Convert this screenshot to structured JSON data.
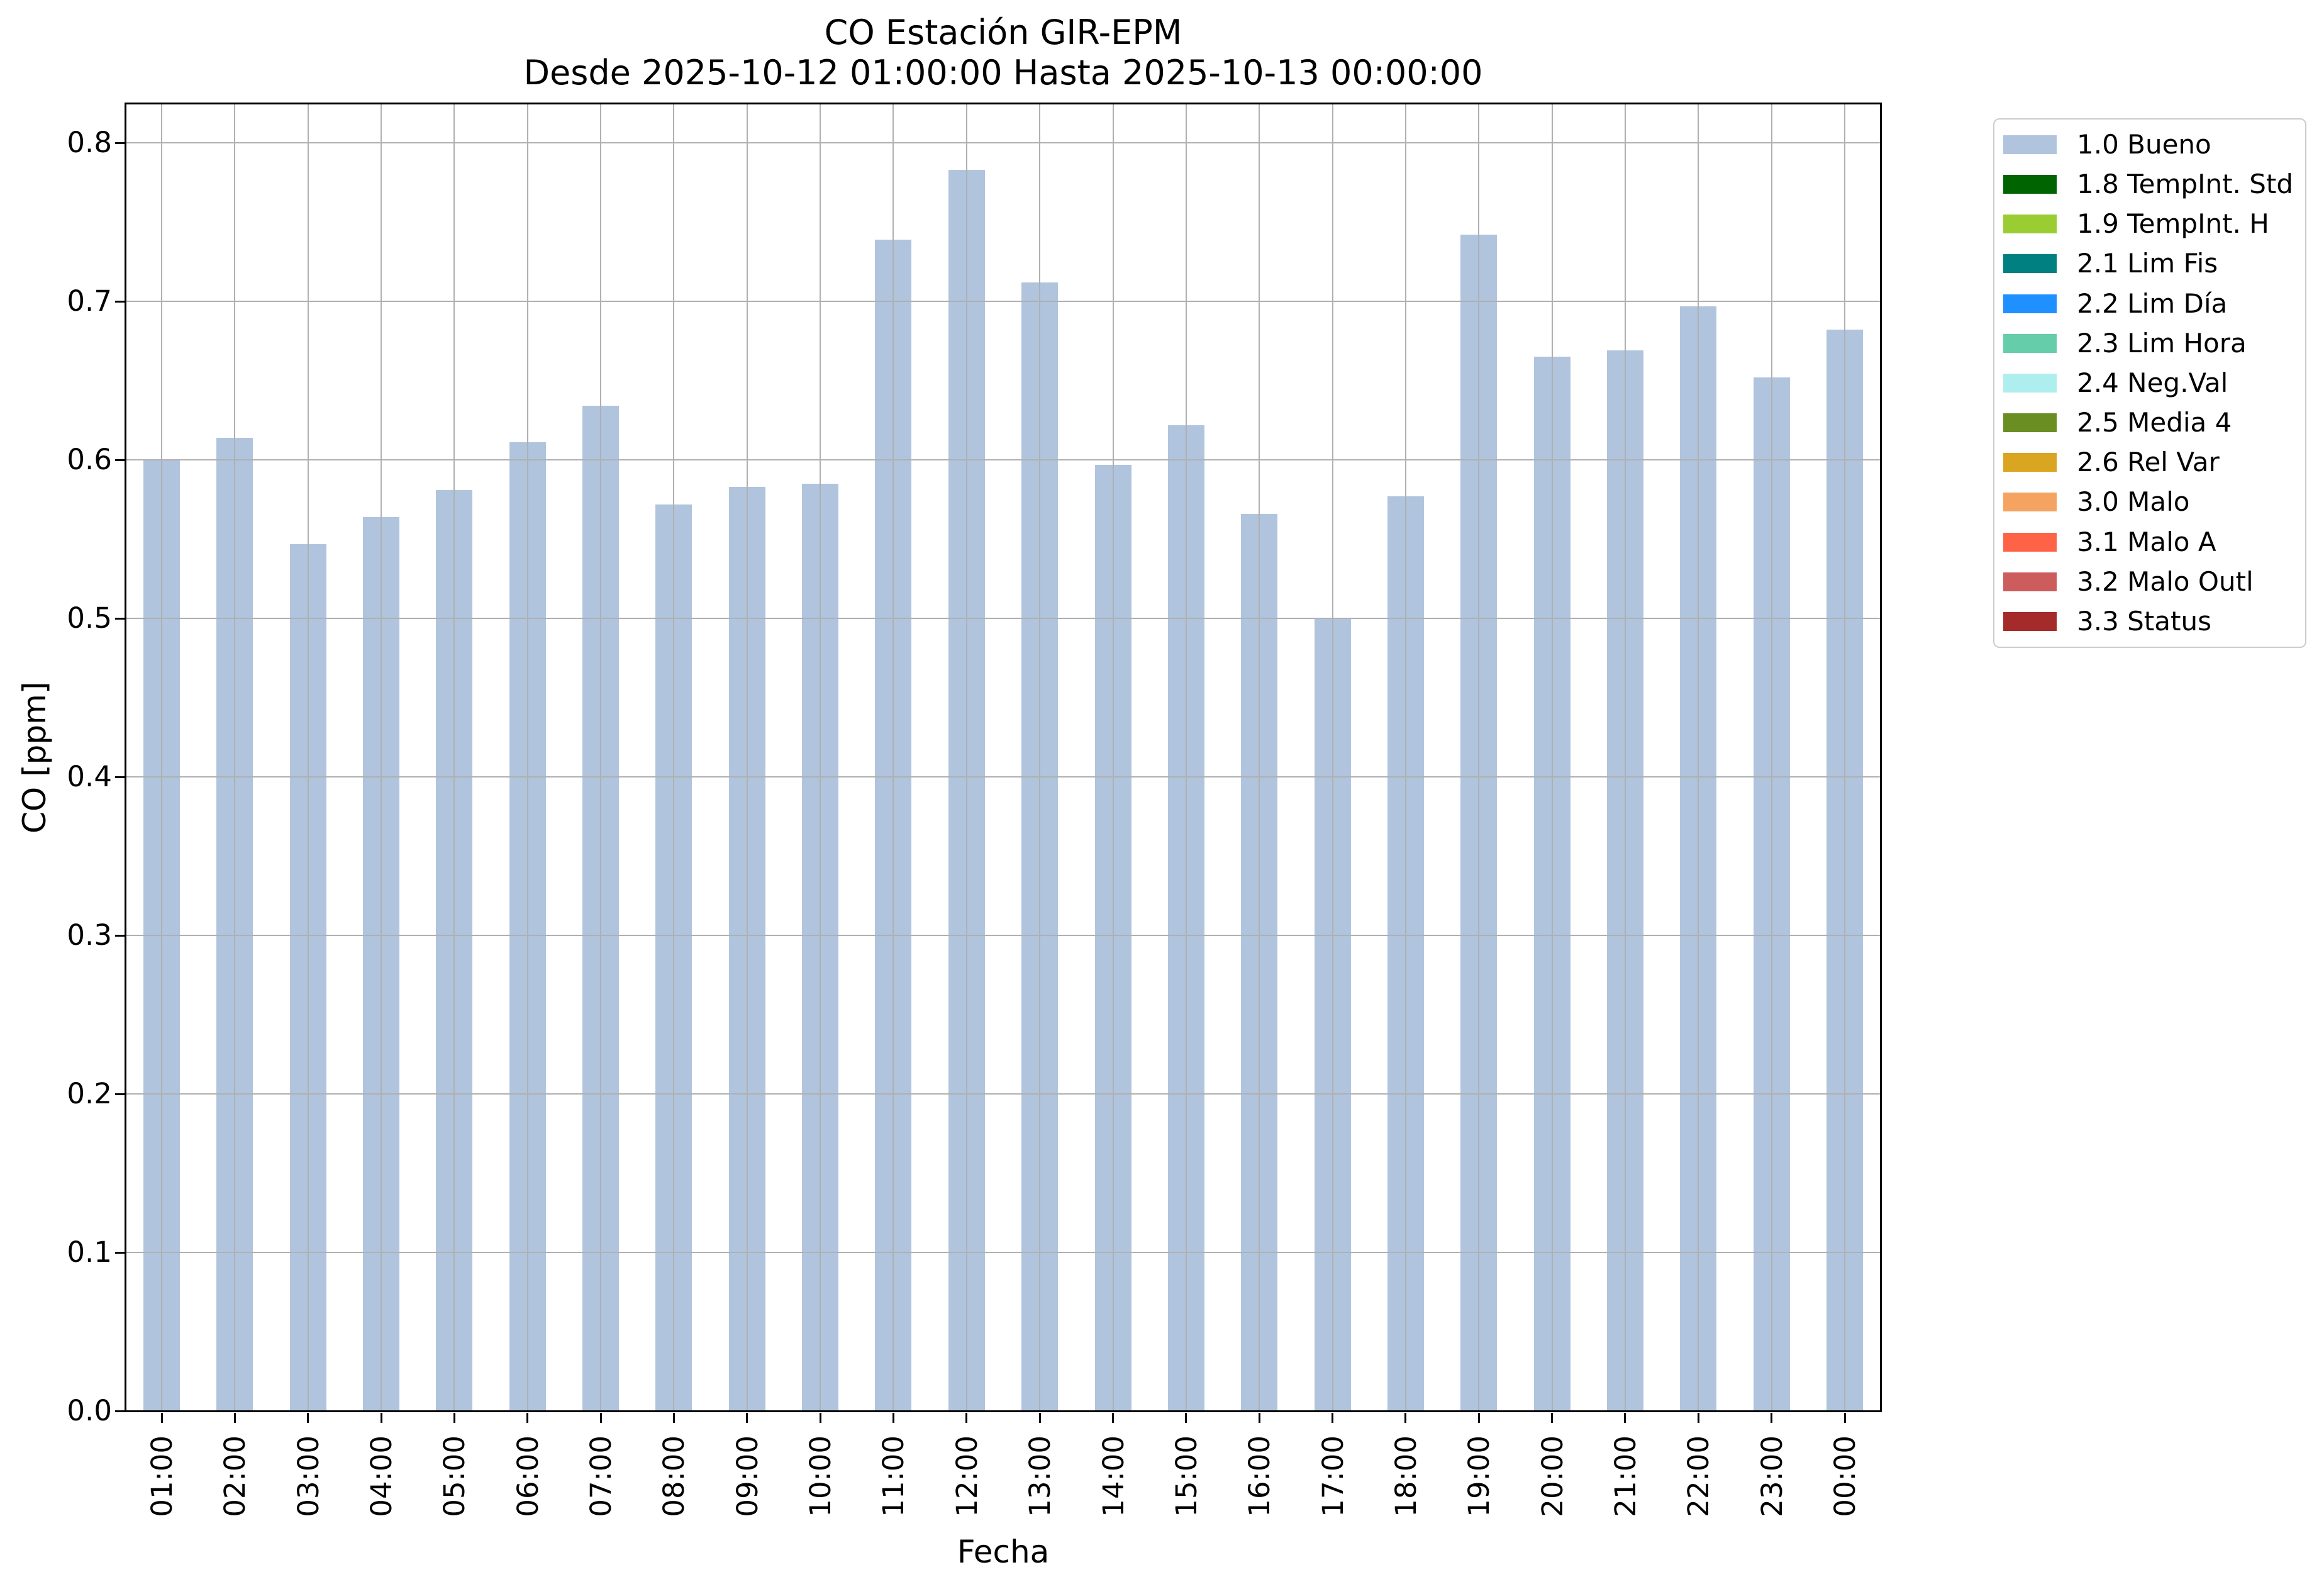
{
  "chart_data": {
    "type": "bar",
    "title": "CO Estación GIR-EPM",
    "subtitle": "Desde 2025-10-12 01:00:00 Hasta 2025-10-13 00:00:00",
    "xlabel": "Fecha",
    "ylabel": "CO [ppm]",
    "series_name": "1.0 Bueno",
    "bar_color": "#b0c4de",
    "gridline_color": "#b0b0b0",
    "grid": true,
    "legend_position": "outside-right",
    "ylim": [
      0.0,
      0.8246
    ],
    "yticks": [
      0.0,
      0.1,
      0.2,
      0.3,
      0.4,
      0.5,
      0.6,
      0.7,
      0.8
    ],
    "categories": [
      "01:00",
      "02:00",
      "03:00",
      "04:00",
      "05:00",
      "06:00",
      "07:00",
      "08:00",
      "09:00",
      "10:00",
      "11:00",
      "12:00",
      "13:00",
      "14:00",
      "15:00",
      "16:00",
      "17:00",
      "18:00",
      "19:00",
      "20:00",
      "21:00",
      "22:00",
      "23:00",
      "00:00"
    ],
    "values": [
      0.6,
      0.614,
      0.547,
      0.564,
      0.581,
      0.611,
      0.634,
      0.572,
      0.583,
      0.585,
      0.739,
      0.783,
      0.712,
      0.597,
      0.622,
      0.566,
      0.5,
      0.577,
      0.742,
      0.665,
      0.669,
      0.697,
      0.652,
      0.682
    ]
  },
  "legend": {
    "items": [
      {
        "label": "1.0 Bueno",
        "color": "#b0c4de"
      },
      {
        "label": "1.8 TempInt. Std",
        "color": "#006400"
      },
      {
        "label": "1.9 TempInt. H",
        "color": "#9acd32"
      },
      {
        "label": "2.1 Lim Fis",
        "color": "#008080"
      },
      {
        "label": "2.2 Lim Día",
        "color": "#1e90ff"
      },
      {
        "label": "2.3 Lim Hora",
        "color": "#66cdaa"
      },
      {
        "label": "2.4 Neg.Val",
        "color": "#afeeee"
      },
      {
        "label": "2.5 Media 4",
        "color": "#6b8e23"
      },
      {
        "label": "2.6 Rel Var",
        "color": "#daa520"
      },
      {
        "label": "3.0 Malo",
        "color": "#f4a460"
      },
      {
        "label": "3.1 Malo A",
        "color": "#ff6347"
      },
      {
        "label": "3.2 Malo Outl",
        "color": "#cd5c5c"
      },
      {
        "label": "3.3 Status",
        "color": "#a52a2a"
      }
    ]
  }
}
